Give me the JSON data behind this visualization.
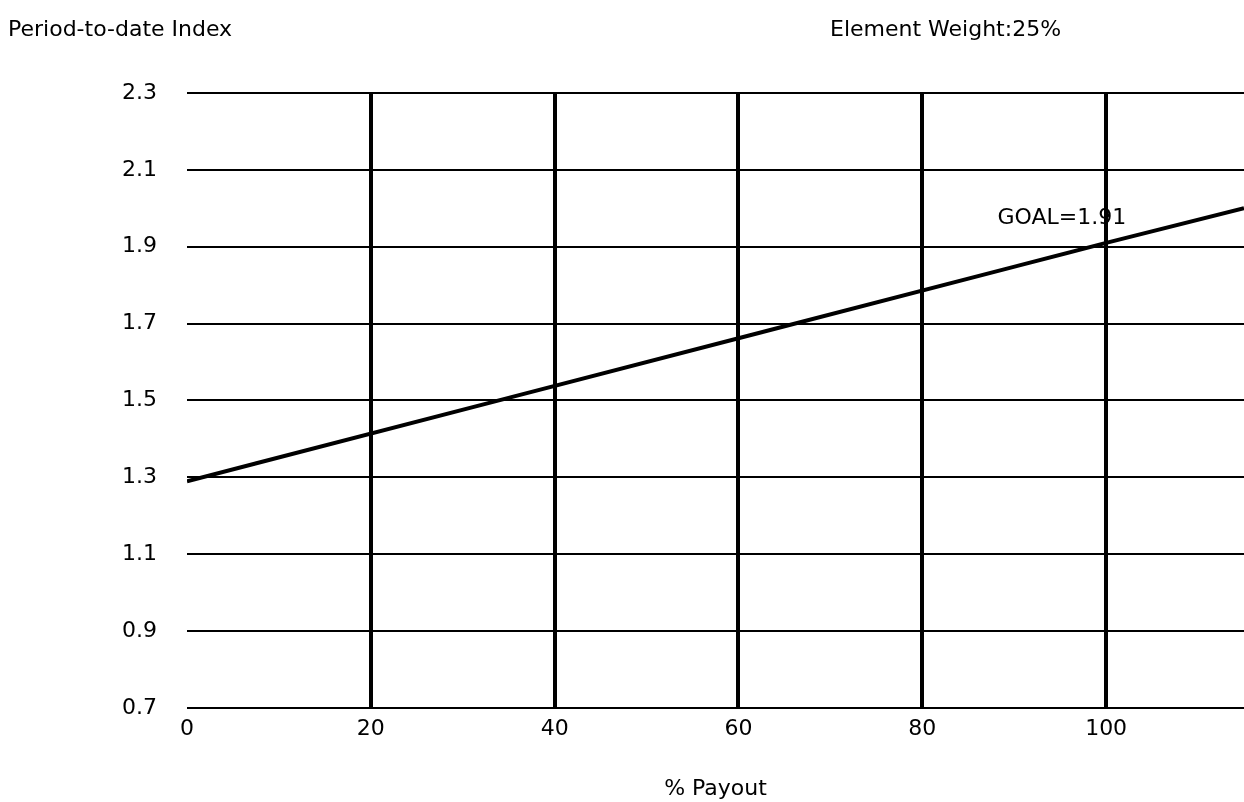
{
  "chart_data": {
    "type": "line",
    "title": "Element Weight:25%",
    "xlabel": "% Payout",
    "ylabel": "Period-to-date Index",
    "x": [
      0,
      100,
      115
    ],
    "series": [
      {
        "color": "#000000",
        "values": [
          1.29,
          1.91,
          2.0
        ]
      }
    ],
    "xlim": [
      0,
      115
    ],
    "xticks": [
      0,
      20,
      40,
      60,
      80,
      100
    ],
    "ylim": [
      0.7,
      2.3
    ],
    "yticks": [
      0.7,
      0.9,
      1.1,
      1.3,
      1.5,
      1.7,
      1.9,
      2.1,
      2.3
    ],
    "annotations": [
      {
        "text": "GOAL=1.91",
        "x": 100,
        "y": 1.91
      }
    ],
    "grid": true,
    "legend": false,
    "marker": "none",
    "line_style": "solid"
  }
}
